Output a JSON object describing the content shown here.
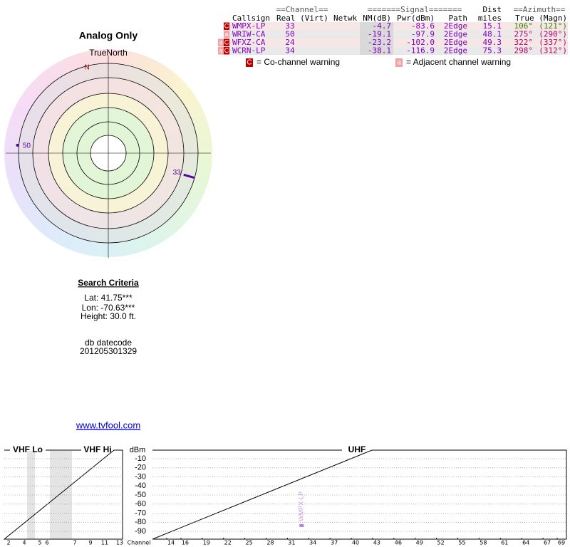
{
  "title": "Analog Only",
  "polar": {
    "north": "TrueNorth",
    "n": "N"
  },
  "table": {
    "group_headers": {
      "channel": "==Channel==",
      "signal": "=======Signal=======",
      "dist": "Dist",
      "azimuth": "==Azimuth=="
    },
    "columns": {
      "callsign": "Callsign",
      "real": "Real (Virt)",
      "netwk": "Netwk",
      "nm": "NM(dB)",
      "pwr": "Pwr(dBm)",
      "path": "Path",
      "miles": "miles",
      "azimuth": "True (Magn)"
    },
    "rows": [
      {
        "flags": [
          "C"
        ],
        "callsign": "WMPX-LP",
        "channel": 33,
        "nm": -4.7,
        "pwr": -83.6,
        "path": "2Edge",
        "miles": 15.1,
        "azimuth_true": {
          "value": 106,
          "label": "106°"
        },
        "azimuth_magn": {
          "value": 121,
          "label": "(121°)"
        }
      },
      {
        "flags": [
          "a"
        ],
        "callsign": "WRIW-CA",
        "channel": 50,
        "nm": -19.1,
        "pwr": -97.9,
        "path": "2Edge",
        "miles": 48.1,
        "azimuth_true": {
          "value": 275,
          "label": "275°"
        },
        "azimuth_magn": {
          "value": 290,
          "label": "(290°)"
        }
      },
      {
        "flags": [
          "a",
          "C"
        ],
        "callsign": "WFXZ-CA",
        "channel": 24,
        "nm": -23.2,
        "pwr": {
          "value": -102,
          "label": "-102.0"
        },
        "path": "2Edge",
        "miles": 49.3,
        "azimuth_true": {
          "value": 322,
          "label": "322°"
        },
        "azimuth_magn": {
          "value": 337,
          "label": "(337°)"
        }
      },
      {
        "flags": [
          "a",
          "C"
        ],
        "callsign": "WCRN-LP",
        "channel": 34,
        "nm": -38.1,
        "pwr": -116.9,
        "path": "2Edge",
        "miles": 75.3,
        "azimuth_true": {
          "value": 298,
          "label": "298°"
        },
        "azimuth_magn": {
          "value": 312,
          "label": "(312°)"
        }
      }
    ]
  },
  "legend": [
    {
      "flag": "C",
      "text": "= Co-channel warning"
    },
    {
      "flag": "a",
      "text": "= Adjacent channel warning"
    }
  ],
  "search": {
    "title": "Search Criteria",
    "lat": "Lat: 41.75***",
    "lon": "Lon: -70.63***",
    "height": "Height: 30.0 ft.",
    "datecode_label": "db datecode",
    "datecode": "201205301329",
    "link": "www.tvfool.com"
  },
  "spectrum": {
    "sections": [
      "VHF Lo",
      "VHF Hi",
      "UHF"
    ],
    "y_label": "dBm",
    "yticks": [
      -10,
      -20,
      -30,
      -40,
      -50,
      -60,
      -70,
      -80,
      -90
    ],
    "vhf_channels": [
      "2",
      "4",
      "5",
      "6",
      "7",
      "9",
      "11",
      "13"
    ],
    "channel_label": "Channel",
    "uhf_channels": [
      14,
      16,
      19,
      22,
      25,
      28,
      31,
      34,
      37,
      40,
      43,
      46,
      49,
      52,
      55,
      58,
      61,
      64,
      67,
      69
    ]
  }
}
